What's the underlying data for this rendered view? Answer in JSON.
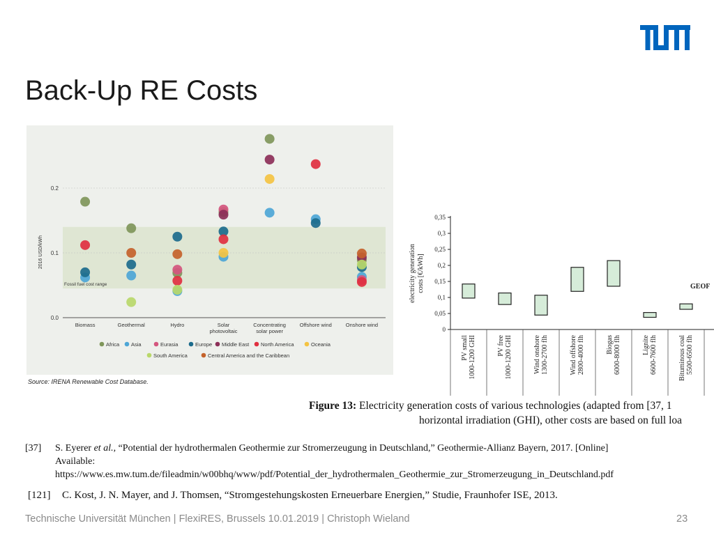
{
  "slide": {
    "title": "Back-Up RE Costs",
    "footer": "Technische Universität München | FlexiRES, Brussels 10.01.2019 | Christoph Wieland",
    "page_number": "23"
  },
  "logo": {
    "text": "TUM",
    "color": "#0065BD"
  },
  "source_note": "Source: IRENA Renewable Cost Database.",
  "caption": {
    "label": "Figure 13:",
    "line1": " Electricity generation costs of various technologies (adapted from [37, 1",
    "line2": "horizontal irradiation (GHI), other costs are based on full loa"
  },
  "references": [
    {
      "id": "[37]",
      "line1_pre": "S. Eyerer ",
      "line1_em": "et al.,",
      "line1_post": " “Potential der hydrothermalen Geothermie zur Stromerzeugung in Deutschland,” Geothermie-Allianz Bayern, 2017. [Online]",
      "line2": "Available:",
      "line3": "https://www.es.mw.tum.de/fileadmin/w00bhq/www/pdf/Potential_der_hydrothermalen_Geothermie_zur_Stromerzeugung_in_Deutschland.pdf"
    },
    {
      "id": "[121]",
      "line1": "C. Kost, J. N. Mayer, and J. Thomsen, “Stromgestehungskosten Erneuerbare Energien,” Studie, Fraunhofer ISE, 2013."
    }
  ],
  "chart_data": [
    {
      "type": "scatter",
      "ylabel": "2016 USD/kWh",
      "ylim": [
        0,
        0.28
      ],
      "yticks": [
        "0.0",
        "0.1",
        "0.2"
      ],
      "ytick_values": [
        0,
        0.1,
        0.2
      ],
      "band": {
        "label": "Fossil fuel cost range",
        "range": [
          0.045,
          0.14
        ],
        "color": "#dfe6d3"
      },
      "categories": [
        "Biomass",
        "Geothermal",
        "Hydro",
        "Solar photovoltaic",
        "Concentrating solar power",
        "Offshore wind",
        "Onshore wind"
      ],
      "category_labels": [
        [
          "Biomass"
        ],
        [
          "Geothermal"
        ],
        [
          "Hydro"
        ],
        [
          "Solar",
          "photovoltaic"
        ],
        [
          "Concentrating",
          "solar power"
        ],
        [
          "Offshore wind"
        ],
        [
          "Onshore wind"
        ]
      ],
      "legend_row1": [
        "Africa",
        "Asia",
        "Eurasia",
        "Europe",
        "Middle East",
        "North America",
        "Oceania"
      ],
      "legend_row2": [
        "South America",
        "Central America and the Caribbean"
      ],
      "region_colors": {
        "Africa": "#7f965a",
        "Asia": "#4da6d6",
        "Eurasia": "#d4567e",
        "Europe": "#1c6b8c",
        "Middle East": "#8c2f58",
        "North America": "#e03040",
        "Oceania": "#f4c342",
        "South America": "#b9d86a",
        "Central America and the Caribbean": "#c4622b"
      },
      "series": [
        {
          "name": "Africa",
          "points": [
            [
              "Biomass",
              0.179
            ],
            [
              "Geothermal",
              0.138
            ],
            [
              "Hydro",
              0.069
            ],
            [
              "Solar photovoltaic",
              0.163
            ],
            [
              "Concentrating solar power",
              0.276
            ],
            [
              "Onshore wind",
              0.089
            ]
          ]
        },
        {
          "name": "Asia",
          "points": [
            [
              "Biomass",
              0.062
            ],
            [
              "Geothermal",
              0.065
            ],
            [
              "Hydro",
              0.041
            ],
            [
              "Solar photovoltaic",
              0.094
            ],
            [
              "Concentrating solar power",
              0.162
            ],
            [
              "Offshore wind",
              0.152
            ],
            [
              "Onshore wind",
              0.063
            ]
          ]
        },
        {
          "name": "Eurasia",
          "points": [
            [
              "Hydro",
              0.074
            ],
            [
              "Solar photovoltaic",
              0.167
            ],
            [
              "Onshore wind",
              0.058
            ]
          ]
        },
        {
          "name": "Europe",
          "points": [
            [
              "Biomass",
              0.07
            ],
            [
              "Geothermal",
              0.082
            ],
            [
              "Hydro",
              0.125
            ],
            [
              "Solar photovoltaic",
              0.133
            ],
            [
              "Offshore wind",
              0.146
            ],
            [
              "Onshore wind",
              0.078
            ]
          ]
        },
        {
          "name": "Middle East",
          "points": [
            [
              "Solar photovoltaic",
              0.159
            ],
            [
              "Concentrating solar power",
              0.244
            ],
            [
              "Onshore wind",
              0.093
            ]
          ]
        },
        {
          "name": "North America",
          "points": [
            [
              "Biomass",
              0.112
            ],
            [
              "Hydro",
              0.057
            ],
            [
              "Solar photovoltaic",
              0.121
            ],
            [
              "Offshore wind",
              0.237
            ],
            [
              "Onshore wind",
              0.055
            ]
          ]
        },
        {
          "name": "Oceania",
          "points": [
            [
              "Solar photovoltaic",
              0.1
            ],
            [
              "Concentrating solar power",
              0.214
            ]
          ]
        },
        {
          "name": "South America",
          "points": [
            [
              "Geothermal",
              0.024
            ],
            [
              "Hydro",
              0.043
            ],
            [
              "Onshore wind",
              0.082
            ]
          ]
        },
        {
          "name": "Central America and the Caribbean",
          "points": [
            [
              "Geothermal",
              0.1
            ],
            [
              "Hydro",
              0.098
            ],
            [
              "Onshore wind",
              0.099
            ]
          ]
        }
      ]
    },
    {
      "type": "bar",
      "subtype": "floating-range",
      "ylabel": "electricity generation costs [€/kWh]",
      "ylim": [
        0,
        0.35
      ],
      "yticks": [
        "0",
        "0,05",
        "0,1",
        "0,15",
        "0,2",
        "0,25",
        "0,3",
        "0,35"
      ],
      "ytick_values": [
        0,
        0.05,
        0.1,
        0.15,
        0.2,
        0.25,
        0.3,
        0.35
      ],
      "bar_color": "#d6ecd9",
      "categories": [
        [
          "PV small",
          "1000-1200 GHI"
        ],
        [
          "PV free",
          "1000-1200 GHI"
        ],
        [
          "Wind onshore",
          "1300-2700 flh"
        ],
        [
          "Wind offshore",
          "2800-4000 flh"
        ],
        [
          "Biogas",
          "6000-8000 flh"
        ],
        [
          "Lignite",
          "6600-7600 flh"
        ],
        [
          "Bituminous coal",
          "5500-6500 flh"
        ]
      ],
      "ranges": [
        [
          0.098,
          0.142
        ],
        [
          0.078,
          0.114
        ],
        [
          0.045,
          0.107
        ],
        [
          0.119,
          0.194
        ],
        [
          0.135,
          0.215
        ],
        [
          0.038,
          0.053
        ],
        [
          0.063,
          0.08
        ]
      ],
      "annotation": "GEOF"
    }
  ]
}
